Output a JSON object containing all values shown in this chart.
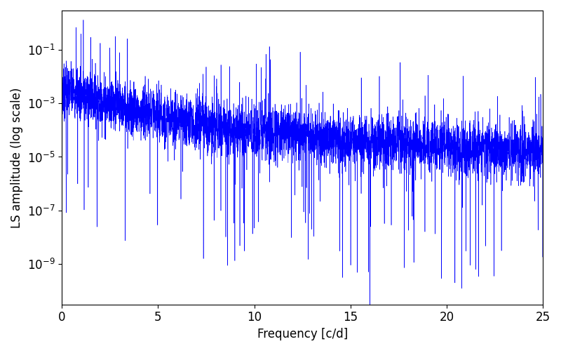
{
  "xlabel": "Frequency [c/d]",
  "ylabel": "LS amplitude (log scale)",
  "line_color": "blue",
  "xlim": [
    0,
    25
  ],
  "ylim": [
    3e-11,
    3
  ],
  "background_color": "#ffffff",
  "figsize": [
    8.0,
    5.0
  ],
  "dpi": 100,
  "seed": 7,
  "n_points": 5000,
  "freq_max": 25.0,
  "tick_fontsize": 12,
  "label_fontsize": 12
}
